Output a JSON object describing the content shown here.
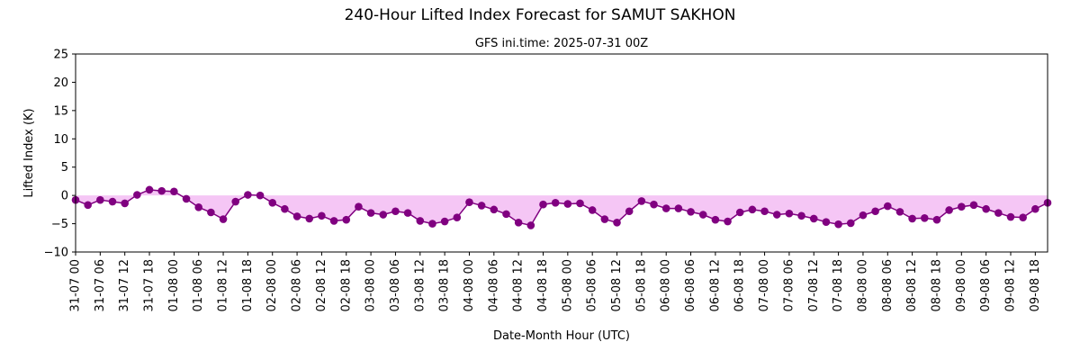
{
  "chart_data": {
    "type": "line",
    "title": "240-Hour Lifted Index Forecast for SAMUT SAKHON",
    "subtitle": "GFS ini.time: 2025-07-31 00Z",
    "xlabel": "Date-Month Hour (UTC)",
    "ylabel": "Lifted Index (K)",
    "ylim": [
      -10,
      25
    ],
    "yticks": [
      -10,
      -5,
      0,
      5,
      10,
      15,
      20,
      25
    ],
    "xticks": [
      "31-07 00",
      "31-07 06",
      "31-07 12",
      "31-07 18",
      "01-08 00",
      "01-08 06",
      "01-08 12",
      "01-08 18",
      "02-08 00",
      "02-08 06",
      "02-08 12",
      "02-08 18",
      "03-08 00",
      "03-08 06",
      "03-08 12",
      "03-08 18",
      "04-08 00",
      "04-08 06",
      "04-08 12",
      "04-08 18",
      "05-08 00",
      "05-08 06",
      "05-08 12",
      "05-08 18",
      "06-08 00",
      "06-08 06",
      "06-08 12",
      "06-08 18",
      "07-08 00",
      "07-08 06",
      "07-08 12",
      "07-08 18",
      "08-08 00",
      "08-08 06",
      "08-08 12",
      "08-08 18",
      "09-08 00",
      "09-08 06",
      "09-08 12",
      "09-08 18"
    ],
    "x_interval_hours": 3,
    "grid": false,
    "colors": {
      "line": "#800080",
      "marker": "#800080",
      "fill": "#f5c6f5"
    },
    "series": [
      {
        "values": [
          -0.8,
          -1.7,
          -0.8,
          -1.1,
          -1.4,
          0.1,
          1.0,
          0.8,
          0.7,
          -0.6,
          -2.1,
          -3.0,
          -4.2,
          -1.1,
          0.1,
          0.0,
          -1.3,
          -2.4,
          -3.7,
          -4.1,
          -3.6,
          -4.5,
          -4.3,
          -2.0,
          -3.1,
          -3.4,
          -2.8,
          -3.1,
          -4.5,
          -5.0,
          -4.6,
          -3.9,
          -1.2,
          -1.8,
          -2.5,
          -3.3,
          -4.8,
          -5.3,
          -1.6,
          -1.3,
          -1.5,
          -1.4,
          -2.6,
          -4.2,
          -4.8,
          -2.8,
          -1.0,
          -1.6,
          -2.3,
          -2.3,
          -2.9,
          -3.4,
          -4.3,
          -4.6,
          -3.0,
          -2.5,
          -2.8,
          -3.4,
          -3.2,
          -3.6,
          -4.1,
          -4.7,
          -5.1,
          -4.9,
          -3.5,
          -2.8,
          -1.9,
          -2.9,
          -4.1,
          -4.0,
          -4.3,
          -2.6,
          -2.0,
          -1.7,
          -2.4,
          -3.1,
          -3.8,
          -3.9,
          -2.4,
          -1.3
        ]
      }
    ]
  }
}
